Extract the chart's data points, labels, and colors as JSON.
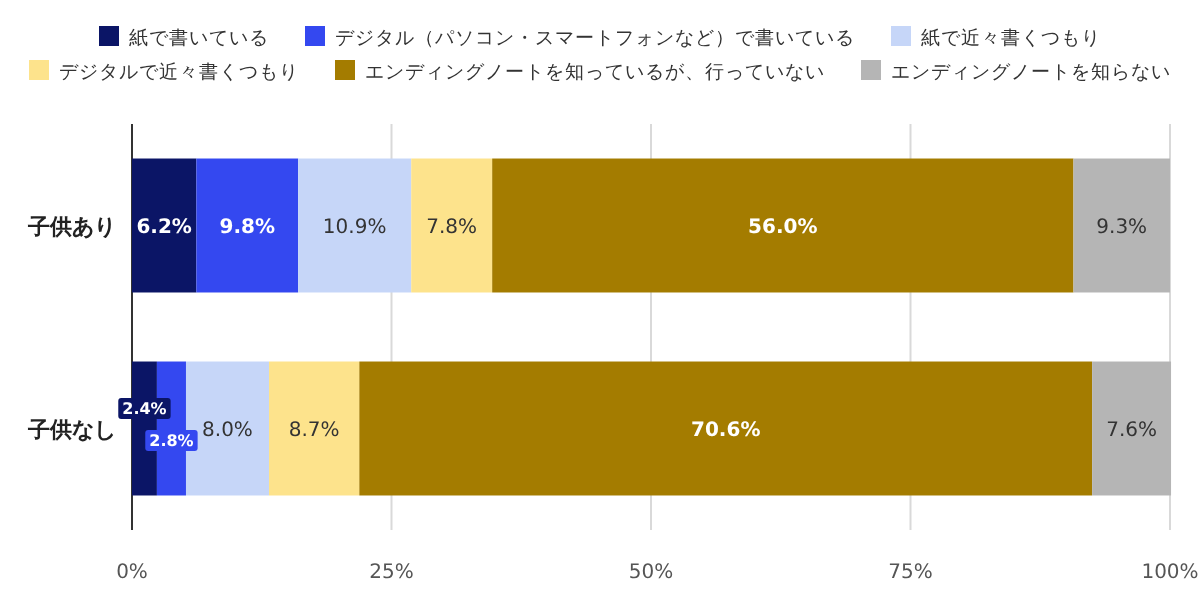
{
  "chart_data": {
    "type": "bar",
    "orientation": "horizontal",
    "stacked": true,
    "categories": [
      "子供あり",
      "子供なし"
    ],
    "series": [
      {
        "name": "紙で書いている",
        "color": "#0b1566",
        "values": [
          6.2,
          2.4
        ],
        "value_labels": [
          "6.2%",
          "2.4%"
        ]
      },
      {
        "name": "デジタル（パソコン・スマートフォンなど）で書いている",
        "color": "#3448f0",
        "values": [
          9.8,
          2.8
        ],
        "value_labels": [
          "9.8%",
          "2.8%"
        ]
      },
      {
        "name": "紙で近々書くつもり",
        "color": "#c6d6f8",
        "values": [
          10.9,
          8.0
        ],
        "value_labels": [
          "10.9%",
          "8.0%"
        ]
      },
      {
        "name": "デジタルで近々書くつもり",
        "color": "#fde38c",
        "values": [
          7.8,
          8.7
        ],
        "value_labels": [
          "7.8%",
          "8.7%"
        ]
      },
      {
        "name": "エンディングノートを知っているが、行っていない",
        "color": "#a47c00",
        "values": [
          56.0,
          70.6
        ],
        "value_labels": [
          "56.0%",
          "70.6%"
        ]
      },
      {
        "name": "エンディングノートを知らない",
        "color": "#b5b5b5",
        "values": [
          9.3,
          7.6
        ],
        "value_labels": [
          "9.3%",
          "7.6%"
        ]
      }
    ],
    "xlim": [
      0,
      100
    ],
    "xticks": [
      {
        "value": 0,
        "label": "0%"
      },
      {
        "value": 25,
        "label": "25%"
      },
      {
        "value": 50,
        "label": "50%"
      },
      {
        "value": 75,
        "label": "75%"
      },
      {
        "value": 100,
        "label": "100%"
      }
    ],
    "grid": "x",
    "legend": "top"
  }
}
